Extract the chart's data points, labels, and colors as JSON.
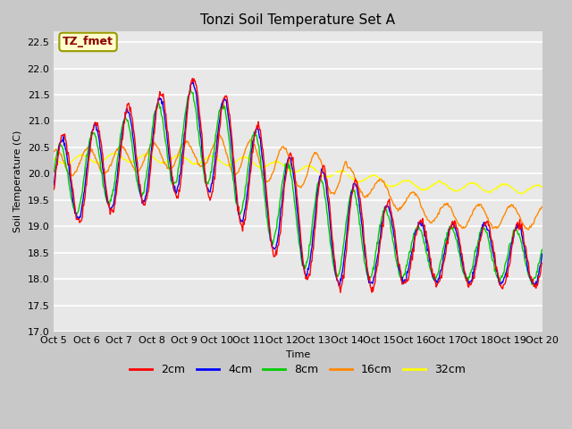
{
  "title": "Tonzi Soil Temperature Set A",
  "xlabel": "Time",
  "ylabel": "Soil Temperature (C)",
  "ylim": [
    17.0,
    22.7
  ],
  "xtick_labels": [
    "Oct 5",
    "Oct 6",
    "Oct 7",
    "Oct 8",
    "Oct 9",
    "Oct 10",
    "Oct 11",
    "Oct 12",
    "Oct 13",
    "Oct 14",
    "Oct 15",
    "Oct 16",
    "Oct 17",
    "Oct 18",
    "Oct 19",
    "Oct 20"
  ],
  "series_colors": [
    "#ff0000",
    "#0000ff",
    "#00cc00",
    "#ff8800",
    "#ffff00"
  ],
  "series_labels": [
    "2cm",
    "4cm",
    "8cm",
    "16cm",
    "32cm"
  ],
  "annotation_text": "TZ_fmet",
  "annotation_color": "#8b0000",
  "annotation_bg": "#ffffcc",
  "annotation_border": "#999900",
  "fig_facecolor": "#c8c8c8",
  "plot_facecolor": "#e8e8e8",
  "title_fontsize": 11,
  "label_fontsize": 8,
  "tick_fontsize": 8
}
